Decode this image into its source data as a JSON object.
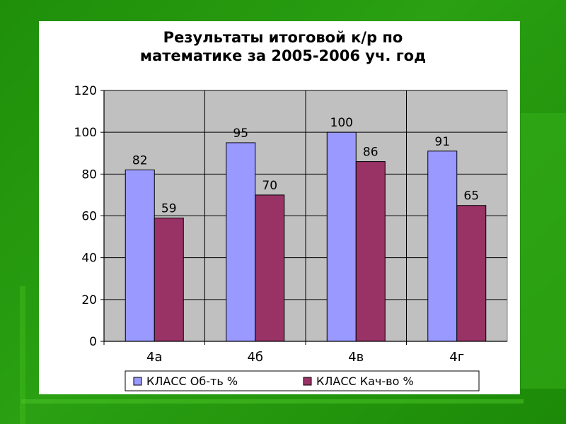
{
  "chart_data": {
    "type": "bar",
    "title": "Результаты итоговой к/р по",
    "subtitle": "математике за 2005-2006 уч. год",
    "categories": [
      "4а",
      "4б",
      "4в",
      "4г"
    ],
    "series": [
      {
        "name": "КЛАСС Об-ть %",
        "values": [
          82,
          95,
          100,
          91
        ],
        "color": "#9999ff"
      },
      {
        "name": "КЛАСС Кач-во %",
        "values": [
          59,
          70,
          86,
          65
        ],
        "color": "#993366"
      }
    ],
    "ylim": [
      0,
      120
    ],
    "yticks": [
      0,
      20,
      40,
      60,
      80,
      100,
      120
    ],
    "grid": true,
    "legend": "bottom",
    "plot_background": "#c0c0c0"
  }
}
